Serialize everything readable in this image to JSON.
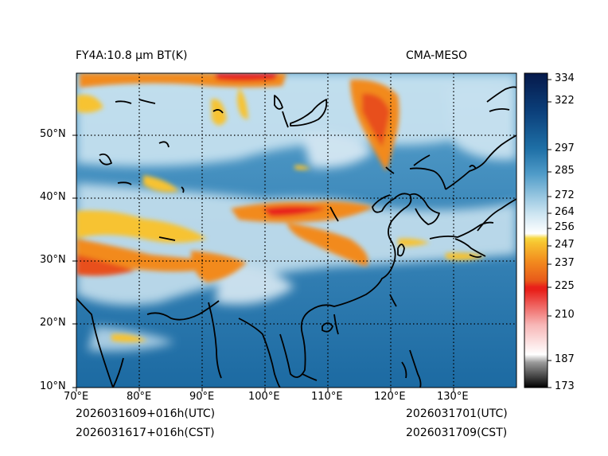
{
  "title_left": "FY4A:10.8 µm BT(K)",
  "title_right": "CMA-MESO",
  "lat_labels": [
    "50°N",
    "40°N",
    "30°N",
    "20°N",
    "10°N"
  ],
  "lon_labels": [
    "70°E",
    "80°E",
    "90°E",
    "100°E",
    "110°E",
    "120°E",
    "130°E"
  ],
  "colorbar_labels": [
    "334",
    "322",
    "297",
    "285",
    "272",
    "264",
    "256",
    "247",
    "237",
    "225",
    "210",
    "187",
    "173"
  ],
  "footer": {
    "init_utc": "2026031609+016h(UTC)",
    "init_cst": "2026031617+016h(CST)",
    "valid_utc": "2026031701(UTC)",
    "valid_cst": "2026031709(CST)"
  },
  "colors": {
    "ocean": "#1f6fa6",
    "cloud_light": "#d8ecf5",
    "cold_orange": "#f28a1e",
    "cold_red": "#e8201a",
    "cold_yellow": "#f7c330"
  }
}
